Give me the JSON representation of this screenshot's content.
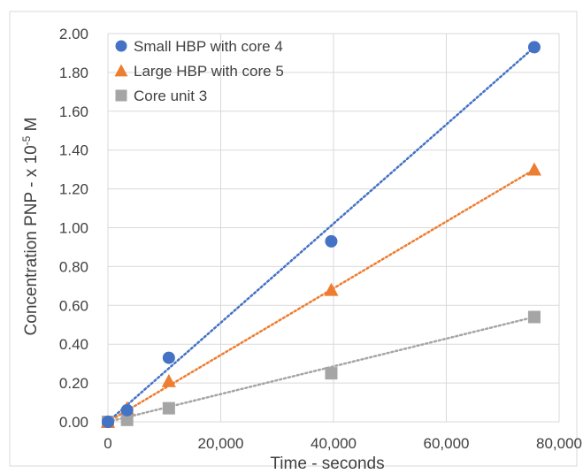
{
  "chart_data": {
    "type": "scatter",
    "xlabel": "Time - seconds",
    "ylabel_main": "Concentration PNP - x 10",
    "ylabel_exp": "-5",
    "ylabel_unit": " M",
    "xlim": [
      0,
      80000
    ],
    "ylim": [
      0,
      2.0
    ],
    "x_ticks": [
      0,
      20000,
      40000,
      60000,
      80000
    ],
    "x_tick_labels": [
      "0",
      "20,000",
      "40,000",
      "60,000",
      "80,000"
    ],
    "y_ticks": [
      0,
      0.2,
      0.4,
      0.6,
      0.8,
      1.0,
      1.2,
      1.4,
      1.6,
      1.8,
      2.0
    ],
    "y_tick_labels": [
      "0.00",
      "0.20",
      "0.40",
      "0.60",
      "0.80",
      "1.00",
      "1.20",
      "1.40",
      "1.60",
      "1.80",
      "2.00"
    ],
    "grid": true,
    "legend_position": "top-left",
    "series": [
      {
        "name": "Small HBP with core 4",
        "marker": "circle",
        "color": "#4472C4",
        "x": [
          0,
          3400,
          10800,
          39600,
          75600
        ],
        "y": [
          0.0,
          0.06,
          0.33,
          0.93,
          1.93
        ],
        "trend": [
          [
            0,
            0.0
          ],
          [
            75600,
            1.93
          ]
        ]
      },
      {
        "name": "Large HBP with core 5",
        "marker": "triangle",
        "color": "#ED7D31",
        "x": [
          0,
          3400,
          10800,
          39600,
          75600
        ],
        "y": [
          0.0,
          0.07,
          0.21,
          0.68,
          1.3
        ],
        "trend": [
          [
            0,
            0.0
          ],
          [
            75600,
            1.3
          ]
        ]
      },
      {
        "name": "Core unit 3",
        "marker": "square",
        "color": "#A5A5A5",
        "x": [
          0,
          3400,
          10800,
          39600,
          75600
        ],
        "y": [
          0.0,
          0.01,
          0.07,
          0.25,
          0.54
        ],
        "trend": [
          [
            0,
            0.0
          ],
          [
            75600,
            0.54
          ]
        ]
      }
    ]
  }
}
